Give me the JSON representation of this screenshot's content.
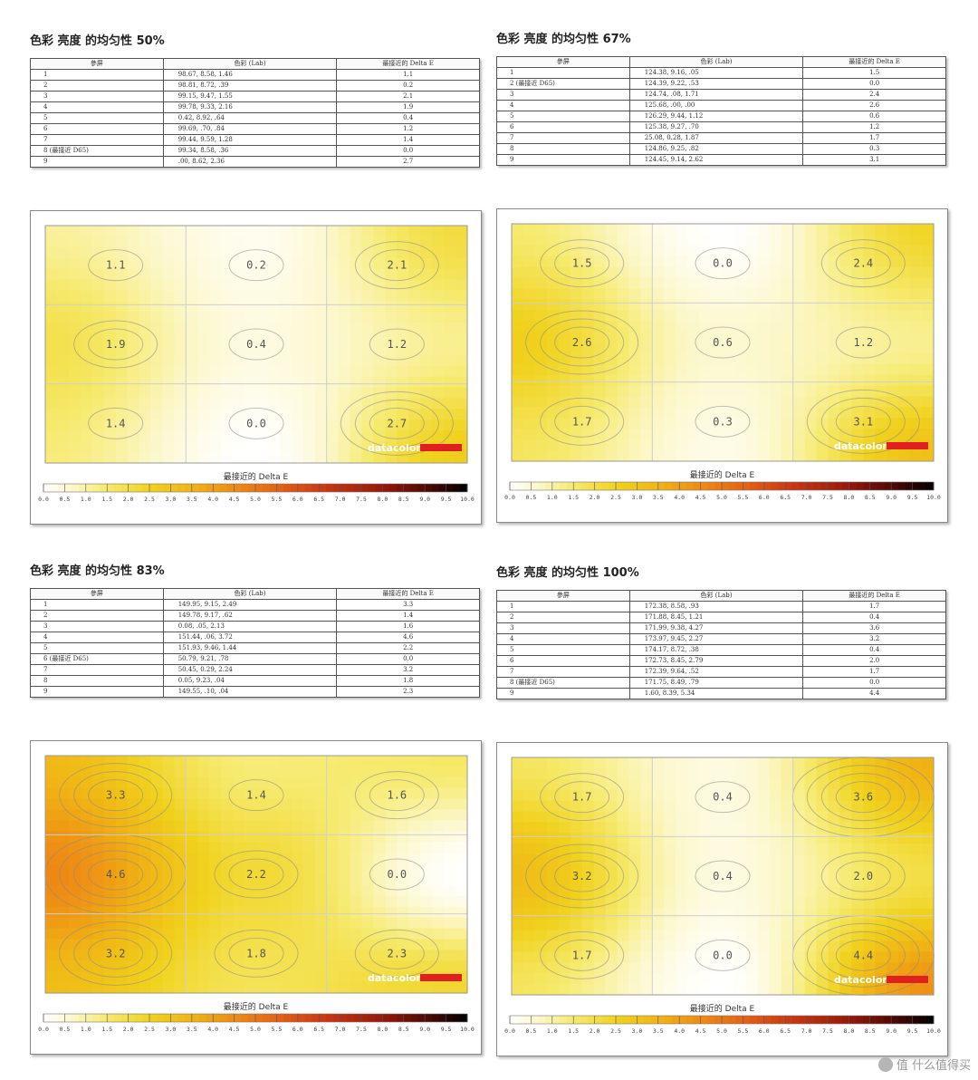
{
  "quadrants": [
    {
      "title": "色彩 亮度 的均匀性 50%",
      "table": {
        "headers": [
          "參屏",
          "色彩 (Lab)",
          "最接近的 Delta E"
        ],
        "rows": [
          {
            "label": "1",
            "lab": "98.67,   8.58,   1.46",
            "de": "1.1"
          },
          {
            "label": "2",
            "lab": "98.81,   8.72,   .39",
            "de": "0.2"
          },
          {
            "label": "3",
            "lab": "99.15,   9.47,   1.55",
            "de": "2.1"
          },
          {
            "label": "4",
            "lab": "99.78,   9.33,   2.16",
            "de": "1.9"
          },
          {
            "label": "5",
            "lab": "0.42,   8.92,   .64",
            "de": "0.4"
          },
          {
            "label": "6",
            "lab": "99.69,   .70,   .84",
            "de": "1.2"
          },
          {
            "label": "7",
            "lab": "99.44,   9.59,   1.28",
            "de": "1.4"
          },
          {
            "label": "8 (最接近 D65)",
            "lab": "99.34,   8.58,   .36",
            "de": "0.0"
          },
          {
            "label": "9",
            "lab": ".00,   8.62,   2.36",
            "de": "2.7"
          }
        ]
      }
    },
    {
      "title": "色彩 亮度 的均匀性 67%",
      "table": {
        "headers": [
          "參屏",
          "色彩 (Lab)",
          "最接近的 Delta E"
        ],
        "rows": [
          {
            "label": "1",
            "lab": "124.38,   9.16,   .05",
            "de": "1.5"
          },
          {
            "label": "2 (最接近 D65)",
            "lab": "124.39,   9.22,   .53",
            "de": "0.0"
          },
          {
            "label": "3",
            "lab": "124.74,   .08,   1.71",
            "de": "2.4"
          },
          {
            "label": "4",
            "lab": "125.68,   .00,   .00",
            "de": "2.6"
          },
          {
            "label": "5",
            "lab": "126.29,   9.44,   1.12",
            "de": "0.6"
          },
          {
            "label": "6",
            "lab": "125.38,   9.27,   .70",
            "de": "1.2"
          },
          {
            "label": "7",
            "lab": "25.08,   0.28,   1.87",
            "de": "1.7"
          },
          {
            "label": "8",
            "lab": "124.86,   9.25,   .82",
            "de": "0.3"
          },
          {
            "label": "9",
            "lab": "124.45,   9.14,   2.62",
            "de": "3.1"
          }
        ]
      }
    },
    {
      "title": "色彩 亮度 的均匀性 83%",
      "table": {
        "headers": [
          "參屏",
          "色彩 (Lab)",
          "最接近的 Delta E"
        ],
        "rows": [
          {
            "label": "1",
            "lab": "149.95,   9.15,   2.49",
            "de": "3.3"
          },
          {
            "label": "2",
            "lab": "149.78,   9.17,   .62",
            "de": "1.4"
          },
          {
            "label": "3",
            "lab": "0.08,   .05,   2.13",
            "de": "1.6"
          },
          {
            "label": "4",
            "lab": "151.44,   .06,   3.72",
            "de": "4.6"
          },
          {
            "label": "5",
            "lab": "151.93,   9.46,   1.44",
            "de": "2.2"
          },
          {
            "label": "6 (最接近 D65)",
            "lab": "50.79,   9.21,   .78",
            "de": "0.0"
          },
          {
            "label": "7",
            "lab": "50.45,   0.29,   2.24",
            "de": "3.2"
          },
          {
            "label": "8",
            "lab": "0.05,   9.23,   .04",
            "de": "1.8"
          },
          {
            "label": "9",
            "lab": "149.55,   .10,   .04",
            "de": "2.3"
          }
        ]
      }
    },
    {
      "title": "色彩 亮度 的均匀性 100%",
      "table": {
        "headers": [
          "參屏",
          "色彩 (Lab)",
          "最接近的 Delta E"
        ],
        "rows": [
          {
            "label": "1",
            "lab": "172.38,   8.58,   .93",
            "de": "1.7"
          },
          {
            "label": "2",
            "lab": "171.88,   8.45,   1.21",
            "de": "0.4"
          },
          {
            "label": "3",
            "lab": "171.99,   9.38,   4.27",
            "de": "3.6"
          },
          {
            "label": "4",
            "lab": "173.97,   9.45,   2.27",
            "de": "3.2"
          },
          {
            "label": "5",
            "lab": "174.17,   8.72,   .38",
            "de": "0.4"
          },
          {
            "label": "6",
            "lab": "172.73,   8.45,   2.79",
            "de": "2.0"
          },
          {
            "label": "7",
            "lab": "172.39,   9.64,   .52",
            "de": "1.7"
          },
          {
            "label": "8 (最接近 D65)",
            "lab": "171.75,   8.49,   .79",
            "de": "0.0"
          },
          {
            "label": "9",
            "lab": "1.60,   8.39,   5.34",
            "de": "4.4"
          }
        ]
      }
    }
  ],
  "chart_data": [
    {
      "type": "heatmap",
      "title": "色彩 亮度 的均匀性 50%",
      "grid": "3x3",
      "values": [
        [
          1.1,
          0.2,
          2.1
        ],
        [
          1.9,
          0.4,
          1.2
        ],
        [
          1.4,
          0.0,
          2.7
        ]
      ],
      "colorbar_label": "最接近的 Delta E",
      "colorbar_range": [
        0,
        10
      ],
      "logo": "datacolor"
    },
    {
      "type": "heatmap",
      "title": "色彩 亮度 的均匀性 67%",
      "grid": "3x3",
      "values": [
        [
          1.5,
          0.0,
          2.4
        ],
        [
          2.6,
          0.6,
          1.2
        ],
        [
          1.7,
          0.3,
          3.1
        ]
      ],
      "colorbar_label": "最接近的 Delta E",
      "colorbar_range": [
        0,
        10
      ],
      "logo": "datacolor"
    },
    {
      "type": "heatmap",
      "title": "色彩 亮度 的均匀性 83%",
      "grid": "3x3",
      "values": [
        [
          3.3,
          1.4,
          1.6
        ],
        [
          4.6,
          2.2,
          0.0
        ],
        [
          3.2,
          1.8,
          2.3
        ]
      ],
      "colorbar_label": "最接近的 Delta E",
      "colorbar_range": [
        0,
        10
      ],
      "logo": "datacolor"
    },
    {
      "type": "heatmap",
      "title": "色彩 亮度 的均匀性 100%",
      "grid": "3x3",
      "values": [
        [
          1.7,
          0.4,
          3.6
        ],
        [
          3.2,
          0.4,
          2.0
        ],
        [
          1.7,
          0.0,
          4.4
        ]
      ],
      "colorbar_label": "最接近的 Delta E",
      "colorbar_range": [
        0,
        10
      ],
      "logo": "datacolor"
    }
  ],
  "colorbar_ticks": [
    "0.0",
    "0.5",
    "1.0",
    "1.5",
    "2.0",
    "2.5",
    "3.0",
    "3.5",
    "4.0",
    "4.5",
    "5.0",
    "5.5",
    "6.0",
    "6.5",
    "7.0",
    "7.5",
    "8.0",
    "8.5",
    "9.0",
    "9.5",
    "10.0"
  ],
  "watermark": "值 什么值得买",
  "colors": {
    "brand_red": "#e02020",
    "contour": "#8a8a8a",
    "grid": "#cfcfcf"
  }
}
